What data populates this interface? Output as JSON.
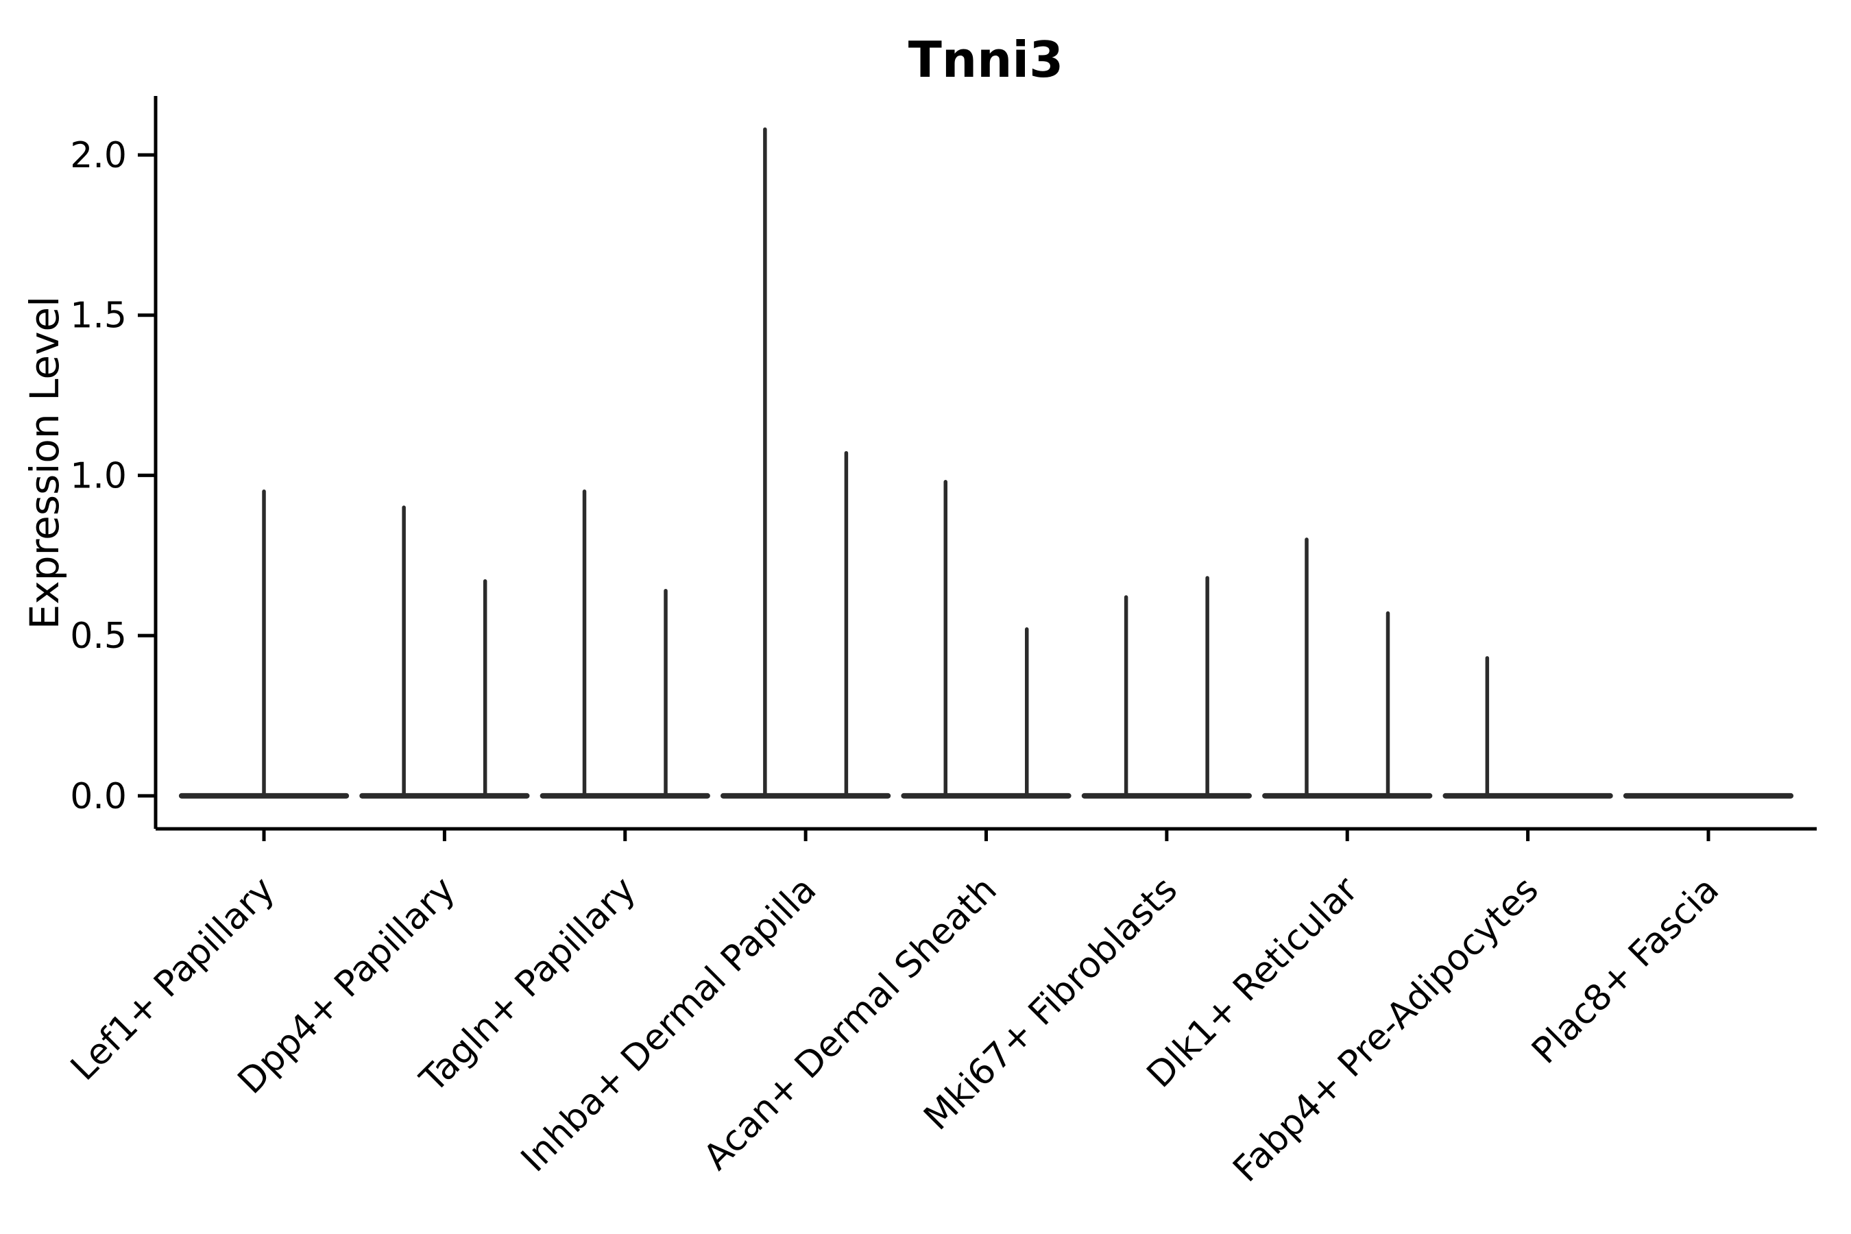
{
  "title": "Tnni3",
  "axes": {
    "ylabel": "Expression Level",
    "xlabel": ""
  },
  "chart_data": {
    "type": "violin",
    "title": "Tnni3",
    "xlabel": "",
    "ylabel": "Expression Level",
    "ylim": [
      -0.103,
      2.184
    ],
    "xlim": [
      -0.6,
      8.6
    ],
    "yticks": [
      0.0,
      0.5,
      1.0,
      1.5,
      2.0
    ],
    "ytick_labels": [
      "0.0",
      "0.5",
      "1.0",
      "1.5",
      "2.0"
    ],
    "grid": false,
    "legend": "none",
    "categories": [
      "Lef1+ Papillary",
      "Dpp4+ Papillary",
      "Tagln+ Papillary",
      "Inhba+ Dermal Papilla",
      "Acan+ Dermal Sheath",
      "Mki67+ Fibroblasts",
      "Dlk1+ Reticular",
      "Fabp4+ Pre-Adipocytes",
      "Plac8+ Fascia"
    ],
    "baseline_value": 0.0,
    "body_halfwidth": 0.456,
    "violins": [
      {
        "label": "Lef1+ Papillary",
        "spikes": [
          {
            "offset": 0.0,
            "top": 0.95
          }
        ]
      },
      {
        "label": "Dpp4+ Papillary",
        "spikes": [
          {
            "offset": -0.225,
            "top": 0.9
          },
          {
            "offset": 0.225,
            "top": 0.67
          }
        ]
      },
      {
        "label": "Tagln+ Papillary",
        "spikes": [
          {
            "offset": -0.225,
            "top": 0.95
          },
          {
            "offset": 0.225,
            "top": 0.64
          }
        ]
      },
      {
        "label": "Inhba+ Dermal Papilla",
        "spikes": [
          {
            "offset": -0.225,
            "top": 2.08
          },
          {
            "offset": 0.225,
            "top": 1.07
          }
        ]
      },
      {
        "label": "Acan+ Dermal Sheath",
        "spikes": [
          {
            "offset": -0.225,
            "top": 0.98
          },
          {
            "offset": 0.225,
            "top": 0.52
          }
        ]
      },
      {
        "label": "Mki67+ Fibroblasts",
        "spikes": [
          {
            "offset": -0.225,
            "top": 0.62
          },
          {
            "offset": 0.225,
            "top": 0.68
          }
        ]
      },
      {
        "label": "Dlk1+ Reticular",
        "spikes": [
          {
            "offset": -0.225,
            "top": 0.8
          },
          {
            "offset": 0.225,
            "top": 0.57
          }
        ]
      },
      {
        "label": "Fabp4+ Pre-Adipocytes",
        "spikes": [
          {
            "offset": -0.225,
            "top": 0.43
          }
        ]
      },
      {
        "label": "Plac8+ Fascia",
        "spikes": []
      }
    ],
    "colors": {
      "violin_line": "#2b2b2b",
      "axis": "#000000",
      "text": "#000000",
      "background": "#ffffff"
    }
  }
}
